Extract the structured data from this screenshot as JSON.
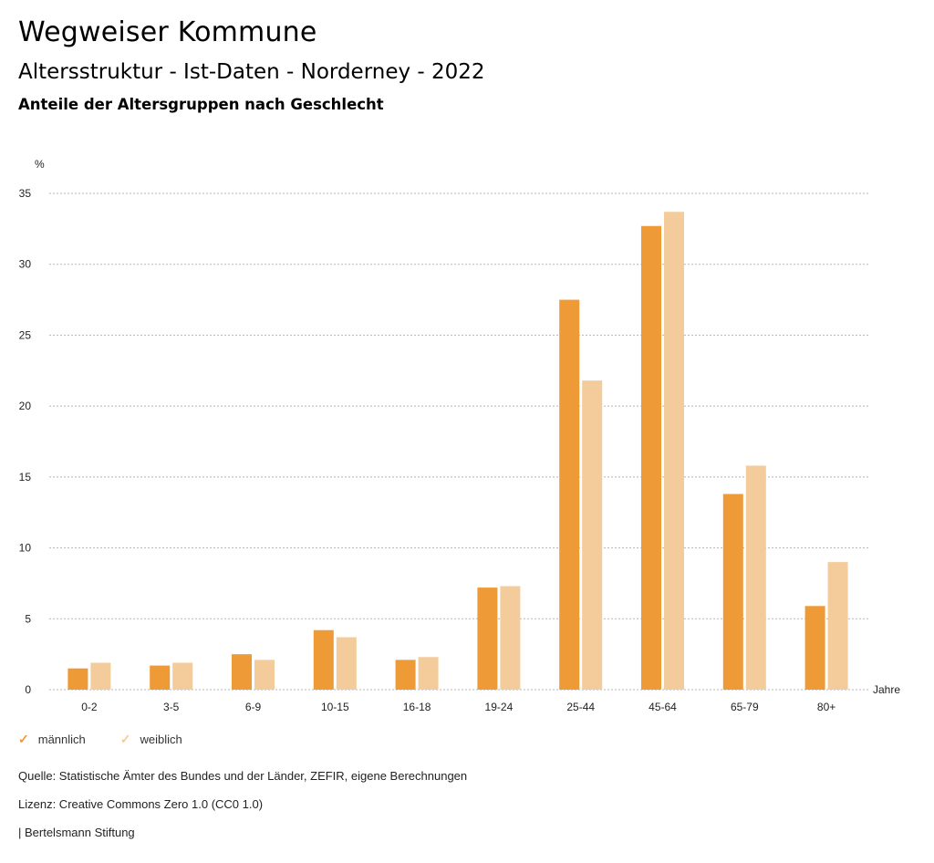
{
  "header": {
    "title": "Wegweiser Kommune",
    "subtitle": "Altersstruktur - Ist-Daten - Norderney - 2022",
    "description": "Anteile der Altersgruppen nach Geschlecht"
  },
  "chart_data": {
    "type": "bar",
    "title": "Anteile der Altersgruppen nach Geschlecht",
    "xlabel": "Jahre",
    "ylabel": "%",
    "ylim": [
      0,
      35
    ],
    "yticks": [
      0,
      5,
      10,
      15,
      20,
      25,
      30,
      35
    ],
    "grid": true,
    "legend_position": "bottom-left",
    "categories": [
      "0-2",
      "3-5",
      "6-9",
      "10-15",
      "16-18",
      "19-24",
      "25-44",
      "45-64",
      "65-79",
      "80+"
    ],
    "series": [
      {
        "name": "männlich",
        "color": "#ee9a36",
        "values": [
          1.5,
          1.7,
          2.5,
          4.2,
          2.1,
          7.2,
          27.5,
          32.7,
          13.8,
          5.9
        ]
      },
      {
        "name": "weiblich",
        "color": "#f4cb9a",
        "values": [
          1.9,
          1.9,
          2.1,
          3.7,
          2.3,
          7.3,
          21.8,
          33.7,
          15.8,
          9.0
        ]
      }
    ]
  },
  "legend": {
    "items": [
      {
        "label": "männlich",
        "icon": "check-icon",
        "color": "#ee9a36"
      },
      {
        "label": "weiblich",
        "icon": "check-icon",
        "color": "#f4cb9a"
      }
    ]
  },
  "footer": {
    "source": "Quelle: Statistische Ämter des Bundes und der Länder, ZEFIR, eigene Berechnungen",
    "license": "Lizenz: Creative Commons Zero 1.0 (CC0 1.0)",
    "publisher": "| Bertelsmann Stiftung"
  }
}
